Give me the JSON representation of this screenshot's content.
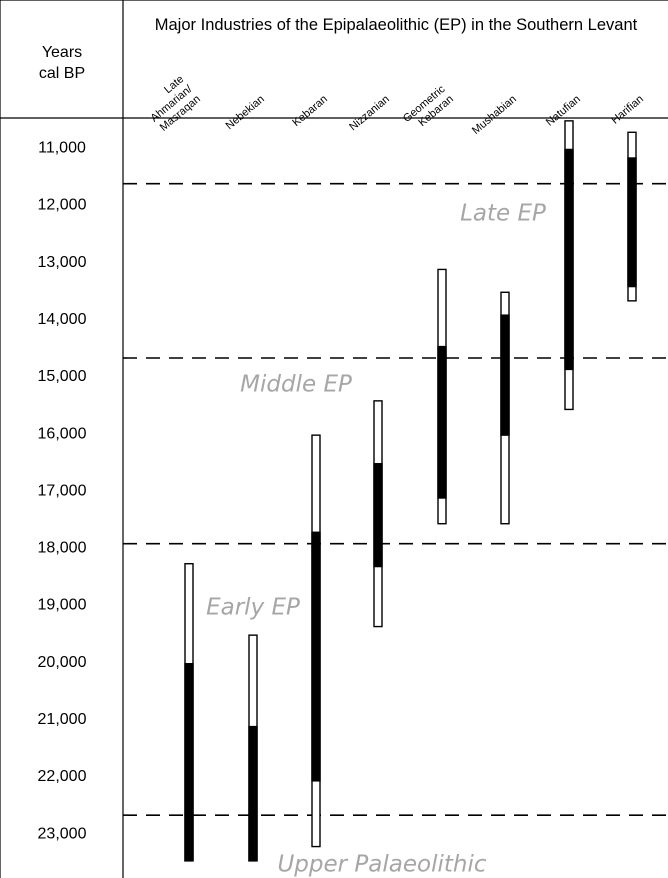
{
  "chart_data": {
    "type": "range-bar",
    "title": "Major Industries of the Epipalaeolithic (EP) in the Southern Levant",
    "ylabel": "Years cal BP",
    "ylim": [
      10500,
      23800
    ],
    "yticks": [
      "11,000",
      "12,000",
      "13,000",
      "14,000",
      "15,000",
      "16,000",
      "17,000",
      "18,000",
      "19,000",
      "20,000",
      "21,000",
      "22,000",
      "23,000"
    ],
    "ytick_values": [
      11000,
      12000,
      13000,
      14000,
      15000,
      16000,
      17000,
      18000,
      19000,
      20000,
      21000,
      22000,
      23000
    ],
    "boundaries": [
      11650,
      14700,
      17950,
      22700
    ],
    "periods": [
      {
        "label": "Late EP",
        "year": 12150
      },
      {
        "label": "Middle EP",
        "year": 15150
      },
      {
        "label": "Early EP",
        "year": 19050
      },
      {
        "label": "Upper Palaeolithic",
        "year": 23550
      }
    ],
    "industries": [
      {
        "label": [
          "Late",
          "Ahmarian/",
          "Masraqan"
        ],
        "outer": [
          18300,
          23500
        ],
        "core": [
          20050,
          23500
        ]
      },
      {
        "label": [
          "Nebekian"
        ],
        "outer": [
          19550,
          23500
        ],
        "core": [
          21150,
          23500
        ]
      },
      {
        "label": [
          "Kebaran"
        ],
        "outer": [
          16050,
          23250
        ],
        "core": [
          17750,
          22100
        ]
      },
      {
        "label": [
          "Nizzanian"
        ],
        "outer": [
          15450,
          19400
        ],
        "core": [
          16550,
          18350
        ]
      },
      {
        "label": [
          "Geometric",
          "Kebaran"
        ],
        "outer": [
          13150,
          17600
        ],
        "core": [
          14500,
          17150
        ]
      },
      {
        "label": [
          "Mushabian"
        ],
        "outer": [
          13550,
          17600
        ],
        "core": [
          13950,
          16050
        ]
      },
      {
        "label": [
          "Natufian"
        ],
        "outer": [
          10550,
          15600
        ],
        "core": [
          11050,
          14900
        ]
      },
      {
        "label": [
          "Harifian"
        ],
        "outer": [
          10750,
          13700
        ],
        "core": [
          11200,
          13450
        ]
      }
    ]
  }
}
